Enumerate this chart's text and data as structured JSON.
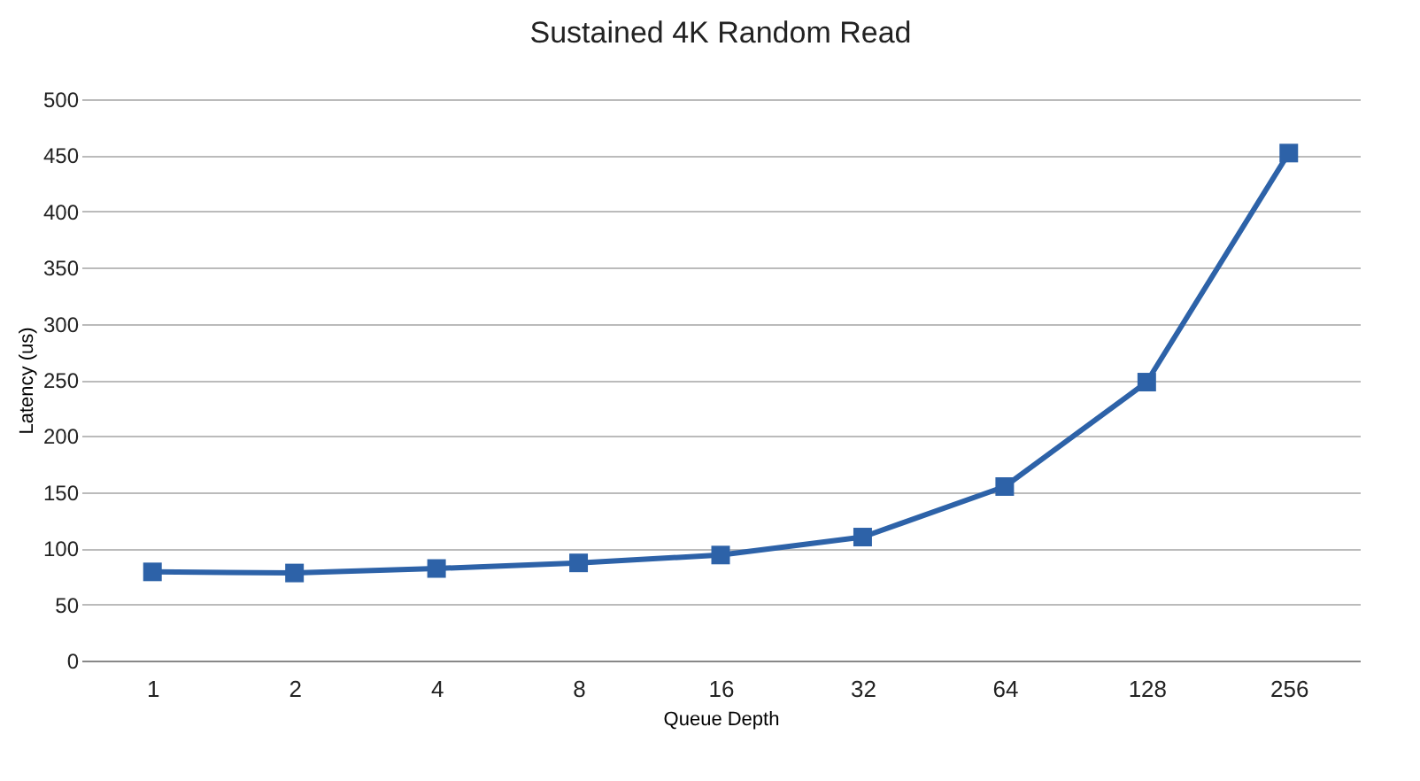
{
  "chart_data": {
    "type": "line",
    "title": "Sustained 4K Random Read",
    "xlabel": "Queue Depth",
    "ylabel": "Latency (us)",
    "categories": [
      "1",
      "2",
      "4",
      "8",
      "16",
      "32",
      "64",
      "128",
      "256"
    ],
    "series": [
      {
        "color": "#2d62a8",
        "values": [
          79,
          78,
          82,
          87,
          94,
          110,
          155,
          248,
          452
        ]
      }
    ],
    "ylim": [
      0,
      500
    ],
    "yticks": [
      0,
      50,
      100,
      150,
      200,
      250,
      300,
      350,
      400,
      450,
      500
    ],
    "grid": "y",
    "marker": "square",
    "line_style": "solid"
  }
}
